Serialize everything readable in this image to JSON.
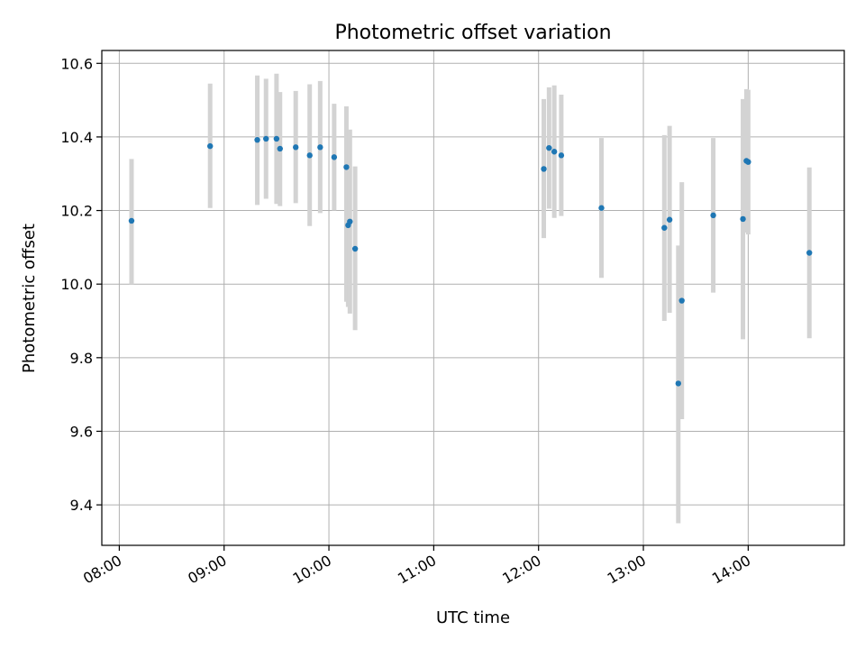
{
  "chart_data": {
    "type": "scatter",
    "title": "Photometric offset variation",
    "xlabel": "UTC time",
    "ylabel": "Photometric offset",
    "xlim": [
      "07:50",
      "14:55"
    ],
    "ylim": [
      9.29,
      10.635
    ],
    "grid": true,
    "x_ticks": [
      "08:00",
      "09:00",
      "10:00",
      "11:00",
      "12:00",
      "13:00",
      "14:00"
    ],
    "y_ticks": [
      9.4,
      9.6,
      9.8,
      10.0,
      10.2,
      10.4,
      10.6
    ],
    "y_tick_labels": [
      "9.4",
      "9.6",
      "9.8",
      "10.0",
      "10.2",
      "10.4",
      "10.6"
    ],
    "colors": {
      "point": "#1f77b4",
      "error_bar": "#d3d3d3",
      "grid": "#b0b0b0"
    },
    "points": [
      {
        "t": "08:07",
        "y": 10.172,
        "lo": 10.0,
        "hi": 10.34
      },
      {
        "t": "08:52",
        "y": 10.375,
        "lo": 10.207,
        "hi": 10.545
      },
      {
        "t": "09:19",
        "y": 10.392,
        "lo": 10.215,
        "hi": 10.567
      },
      {
        "t": "09:24",
        "y": 10.395,
        "lo": 10.232,
        "hi": 10.558
      },
      {
        "t": "09:30",
        "y": 10.395,
        "lo": 10.218,
        "hi": 10.572
      },
      {
        "t": "09:32",
        "y": 10.368,
        "lo": 10.212,
        "hi": 10.522
      },
      {
        "t": "09:41",
        "y": 10.372,
        "lo": 10.22,
        "hi": 10.525
      },
      {
        "t": "09:49",
        "y": 10.35,
        "lo": 10.158,
        "hi": 10.543
      },
      {
        "t": "09:55",
        "y": 10.372,
        "lo": 10.193,
        "hi": 10.552
      },
      {
        "t": "10:03",
        "y": 10.345,
        "lo": 10.2,
        "hi": 10.49
      },
      {
        "t": "10:10",
        "y": 10.318,
        "lo": 9.952,
        "hi": 10.483
      },
      {
        "t": "10:11",
        "y": 10.16,
        "lo": 9.938,
        "hi": 10.41
      },
      {
        "t": "10:12",
        "y": 10.17,
        "lo": 9.92,
        "hi": 10.42
      },
      {
        "t": "10:15",
        "y": 10.096,
        "lo": 9.875,
        "hi": 10.32
      },
      {
        "t": "12:03",
        "y": 10.313,
        "lo": 10.125,
        "hi": 10.503
      },
      {
        "t": "12:06",
        "y": 10.37,
        "lo": 10.205,
        "hi": 10.535
      },
      {
        "t": "12:09",
        "y": 10.36,
        "lo": 10.18,
        "hi": 10.54
      },
      {
        "t": "12:13",
        "y": 10.35,
        "lo": 10.185,
        "hi": 10.515
      },
      {
        "t": "12:36",
        "y": 10.207,
        "lo": 10.017,
        "hi": 10.397
      },
      {
        "t": "13:12",
        "y": 10.153,
        "lo": 9.9,
        "hi": 10.405
      },
      {
        "t": "13:15",
        "y": 10.175,
        "lo": 9.922,
        "hi": 10.43
      },
      {
        "t": "13:20",
        "y": 9.73,
        "lo": 9.35,
        "hi": 10.105
      },
      {
        "t": "13:22",
        "y": 9.955,
        "lo": 9.633,
        "hi": 10.277
      },
      {
        "t": "13:40",
        "y": 10.187,
        "lo": 9.977,
        "hi": 10.397
      },
      {
        "t": "13:57",
        "y": 10.177,
        "lo": 9.85,
        "hi": 10.503
      },
      {
        "t": "13:59",
        "y": 10.335,
        "lo": 10.14,
        "hi": 10.53
      },
      {
        "t": "14:00",
        "y": 10.332,
        "lo": 10.135,
        "hi": 10.528
      },
      {
        "t": "14:35",
        "y": 10.085,
        "lo": 9.853,
        "hi": 10.317
      }
    ]
  }
}
